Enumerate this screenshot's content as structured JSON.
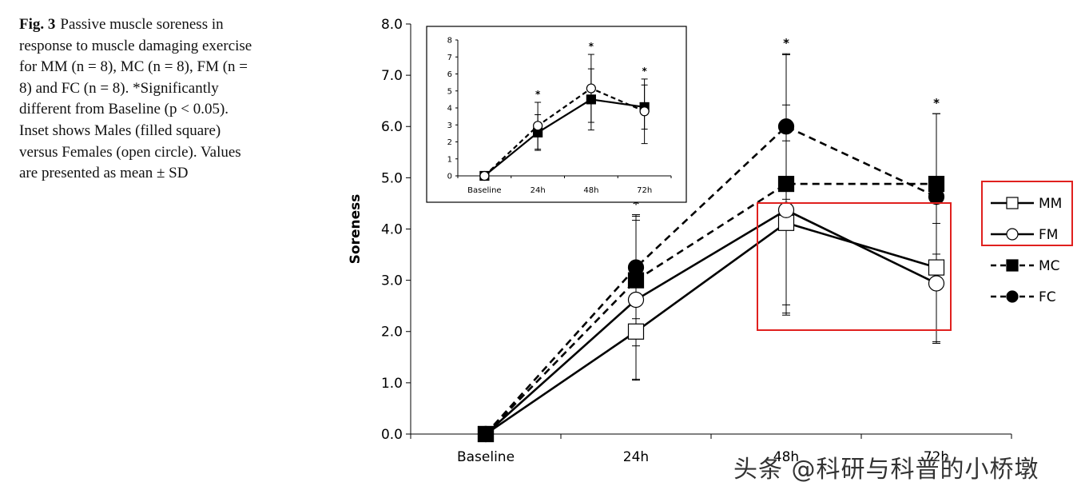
{
  "caption": {
    "label": "Fig. 3",
    "text": "Passive muscle soreness in response to muscle damaging exercise for MM (n = 8), MC (n = 8), FM (n = 8) and FC (n = 8). *Significantly different from Baseline (p < 0.05). Inset shows Males (filled square) versus Females (open circle). Values are presented as mean ± SD"
  },
  "watermark": "头条 @科研与科普的小桥墩",
  "chart_data": [
    {
      "type": "line",
      "title": "",
      "xlabel": "",
      "ylabel": "Soreness",
      "categories": [
        "Baseline",
        "24h",
        "48h",
        "72h"
      ],
      "ylim": [
        0,
        8
      ],
      "yticks": [
        "0.0",
        "1.0",
        "2.0",
        "3.0",
        "4.0",
        "5.0",
        "6.0",
        "7.0",
        "8.0"
      ],
      "series": [
        {
          "name": "MM",
          "values": [
            0,
            2.0,
            4.12,
            3.25
          ],
          "sd": [
            0,
            0.95,
            1.6,
            1.45
          ],
          "marker": "open-square",
          "line": "solid"
        },
        {
          "name": "FM",
          "values": [
            0,
            2.62,
            4.37,
            2.94
          ],
          "sd": [
            0,
            1.55,
            2.05,
            1.17
          ],
          "marker": "open-circle",
          "line": "solid"
        },
        {
          "name": "MC",
          "values": [
            0,
            3.0,
            4.88,
            4.88
          ],
          "sd": [
            0,
            1.28,
            2.52,
            1.37
          ],
          "marker": "filled-square",
          "line": "dashed"
        },
        {
          "name": "FC",
          "values": [
            0,
            3.25,
            6.0,
            4.63
          ],
          "sd": [
            0,
            1.0,
            1.42,
            1.62
          ],
          "marker": "filled-circle",
          "line": "dashed"
        }
      ],
      "significance": [
        {
          "category": "24h",
          "label": "*"
        },
        {
          "category": "48h",
          "label": "*"
        },
        {
          "category": "72h",
          "label": "*"
        }
      ],
      "legend": "right",
      "highlights": [
        "legend: MM, FM",
        "48h-72h: MM, FM"
      ]
    },
    {
      "type": "line",
      "title": "Inset",
      "categories": [
        "Baseline",
        "24h",
        "48h",
        "72h"
      ],
      "ylim": [
        0,
        8
      ],
      "yticks": [
        "0",
        "1",
        "2",
        "3",
        "4",
        "5",
        "6",
        "7",
        "8"
      ],
      "series": [
        {
          "name": "Males",
          "values": [
            0,
            2.55,
            4.5,
            4.05
          ],
          "sd": [
            0,
            1.05,
            1.8,
            1.3
          ],
          "marker": "filled-square",
          "line": "solid"
        },
        {
          "name": "Females",
          "values": [
            0,
            2.95,
            5.15,
            3.8
          ],
          "sd": [
            0,
            1.38,
            2.0,
            1.9
          ],
          "marker": "open-circle",
          "line": "dashed"
        }
      ],
      "significance": [
        {
          "category": "24h",
          "label": "*"
        },
        {
          "category": "48h",
          "label": "*"
        },
        {
          "category": "72h",
          "label": "*"
        }
      ],
      "legend": "none"
    }
  ]
}
